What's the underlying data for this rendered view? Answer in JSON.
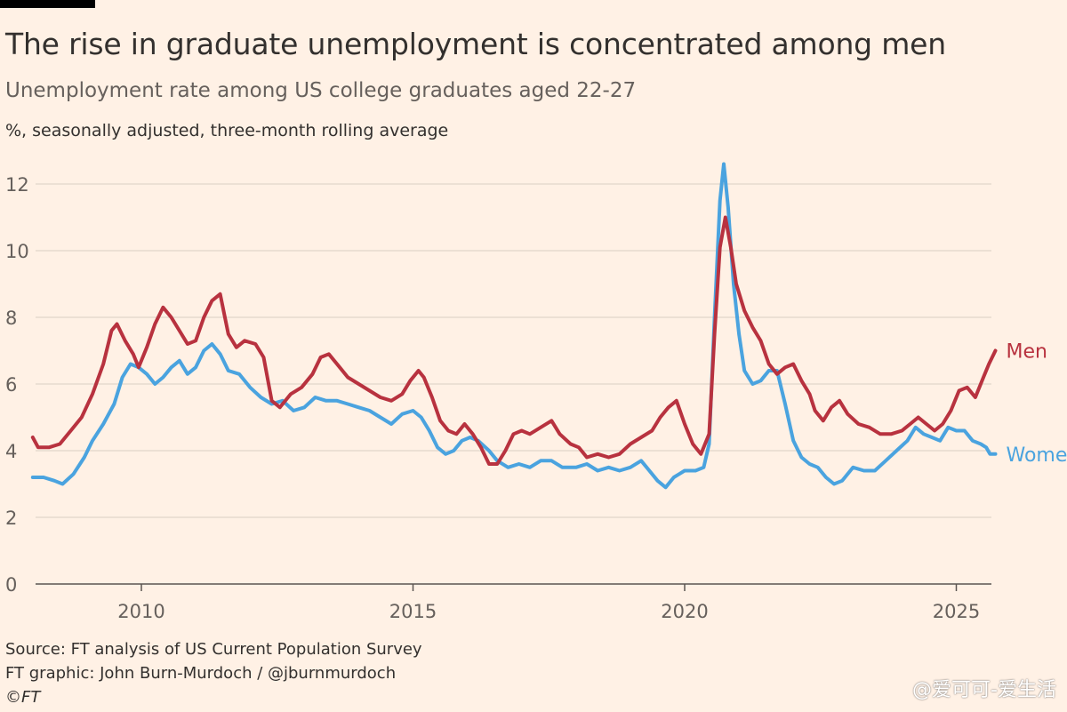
{
  "header": {
    "title": "The rise in graduate unemployment is concentrated among men",
    "subtitle": "Unemployment rate among US college graduates aged 22-27",
    "unit_note": "%, seasonally adjusted, three-month rolling average"
  },
  "footer": {
    "source": "Source: FT analysis of US Current Population Survey",
    "credit": "FT graphic: John Burn-Murdoch / @jburnmurdoch",
    "copyright": "©FT"
  },
  "watermark": "@爱可可-爱生活",
  "chart_data": {
    "type": "line",
    "title": "The rise in graduate unemployment is concentrated among men",
    "ylim": [
      0,
      12.6
    ],
    "xlim": [
      2008.0,
      2025.7
    ],
    "yticks": [
      0,
      2,
      4,
      6,
      8,
      10,
      12
    ],
    "xticks": [
      2010,
      2015,
      2020,
      2025
    ],
    "grid": true,
    "legend": "direct labels at line ends",
    "series": [
      {
        "name": "Men",
        "color": "#b8323f",
        "label_y": 7.0,
        "points": [
          [
            2008.0,
            4.4
          ],
          [
            2008.1,
            4.1
          ],
          [
            2008.3,
            4.1
          ],
          [
            2008.5,
            4.2
          ],
          [
            2008.7,
            4.6
          ],
          [
            2008.9,
            5.0
          ],
          [
            2009.1,
            5.7
          ],
          [
            2009.3,
            6.6
          ],
          [
            2009.45,
            7.6
          ],
          [
            2009.55,
            7.8
          ],
          [
            2009.7,
            7.3
          ],
          [
            2009.85,
            6.9
          ],
          [
            2009.95,
            6.5
          ],
          [
            2010.1,
            7.1
          ],
          [
            2010.25,
            7.8
          ],
          [
            2010.4,
            8.3
          ],
          [
            2010.55,
            8.0
          ],
          [
            2010.7,
            7.6
          ],
          [
            2010.85,
            7.2
          ],
          [
            2011.0,
            7.3
          ],
          [
            2011.15,
            8.0
          ],
          [
            2011.3,
            8.5
          ],
          [
            2011.45,
            8.7
          ],
          [
            2011.6,
            7.5
          ],
          [
            2011.75,
            7.1
          ],
          [
            2011.9,
            7.3
          ],
          [
            2012.1,
            7.2
          ],
          [
            2012.25,
            6.8
          ],
          [
            2012.4,
            5.5
          ],
          [
            2012.55,
            5.3
          ],
          [
            2012.75,
            5.7
          ],
          [
            2012.95,
            5.9
          ],
          [
            2013.15,
            6.3
          ],
          [
            2013.3,
            6.8
          ],
          [
            2013.45,
            6.9
          ],
          [
            2013.6,
            6.6
          ],
          [
            2013.8,
            6.2
          ],
          [
            2014.0,
            6.0
          ],
          [
            2014.2,
            5.8
          ],
          [
            2014.4,
            5.6
          ],
          [
            2014.6,
            5.5
          ],
          [
            2014.8,
            5.7
          ],
          [
            2014.95,
            6.1
          ],
          [
            2015.1,
            6.4
          ],
          [
            2015.2,
            6.2
          ],
          [
            2015.35,
            5.6
          ],
          [
            2015.5,
            4.9
          ],
          [
            2015.65,
            4.6
          ],
          [
            2015.8,
            4.5
          ],
          [
            2015.95,
            4.8
          ],
          [
            2016.1,
            4.5
          ],
          [
            2016.25,
            4.1
          ],
          [
            2016.4,
            3.6
          ],
          [
            2016.55,
            3.6
          ],
          [
            2016.7,
            4.0
          ],
          [
            2016.85,
            4.5
          ],
          [
            2017.0,
            4.6
          ],
          [
            2017.15,
            4.5
          ],
          [
            2017.35,
            4.7
          ],
          [
            2017.55,
            4.9
          ],
          [
            2017.7,
            4.5
          ],
          [
            2017.9,
            4.2
          ],
          [
            2018.05,
            4.1
          ],
          [
            2018.2,
            3.8
          ],
          [
            2018.4,
            3.9
          ],
          [
            2018.6,
            3.8
          ],
          [
            2018.8,
            3.9
          ],
          [
            2019.0,
            4.2
          ],
          [
            2019.2,
            4.4
          ],
          [
            2019.4,
            4.6
          ],
          [
            2019.55,
            5.0
          ],
          [
            2019.7,
            5.3
          ],
          [
            2019.85,
            5.5
          ],
          [
            2020.0,
            4.8
          ],
          [
            2020.15,
            4.2
          ],
          [
            2020.3,
            3.9
          ],
          [
            2020.45,
            4.5
          ],
          [
            2020.55,
            7.5
          ],
          [
            2020.65,
            10.1
          ],
          [
            2020.75,
            11.0
          ],
          [
            2020.85,
            10.1
          ],
          [
            2020.95,
            9.0
          ],
          [
            2021.1,
            8.2
          ],
          [
            2021.25,
            7.7
          ],
          [
            2021.4,
            7.3
          ],
          [
            2021.55,
            6.6
          ],
          [
            2021.7,
            6.3
          ],
          [
            2021.85,
            6.5
          ],
          [
            2022.0,
            6.6
          ],
          [
            2022.15,
            6.1
          ],
          [
            2022.3,
            5.7
          ],
          [
            2022.4,
            5.2
          ],
          [
            2022.55,
            4.9
          ],
          [
            2022.7,
            5.3
          ],
          [
            2022.85,
            5.5
          ],
          [
            2023.0,
            5.1
          ],
          [
            2023.2,
            4.8
          ],
          [
            2023.4,
            4.7
          ],
          [
            2023.6,
            4.5
          ],
          [
            2023.8,
            4.5
          ],
          [
            2024.0,
            4.6
          ],
          [
            2024.15,
            4.8
          ],
          [
            2024.3,
            5.0
          ],
          [
            2024.45,
            4.8
          ],
          [
            2024.6,
            4.6
          ],
          [
            2024.75,
            4.8
          ],
          [
            2024.9,
            5.2
          ],
          [
            2025.05,
            5.8
          ],
          [
            2025.2,
            5.9
          ],
          [
            2025.35,
            5.6
          ],
          [
            2025.5,
            6.2
          ],
          [
            2025.6,
            6.6
          ],
          [
            2025.72,
            7.0
          ]
        ]
      },
      {
        "name": "Women",
        "color": "#4aa3df",
        "label_y": 3.9,
        "points": [
          [
            2008.0,
            3.2
          ],
          [
            2008.2,
            3.2
          ],
          [
            2008.4,
            3.1
          ],
          [
            2008.55,
            3.0
          ],
          [
            2008.75,
            3.3
          ],
          [
            2008.95,
            3.8
          ],
          [
            2009.1,
            4.3
          ],
          [
            2009.3,
            4.8
          ],
          [
            2009.5,
            5.4
          ],
          [
            2009.65,
            6.2
          ],
          [
            2009.8,
            6.6
          ],
          [
            2009.95,
            6.5
          ],
          [
            2010.1,
            6.3
          ],
          [
            2010.25,
            6.0
          ],
          [
            2010.4,
            6.2
          ],
          [
            2010.55,
            6.5
          ],
          [
            2010.7,
            6.7
          ],
          [
            2010.85,
            6.3
          ],
          [
            2011.0,
            6.5
          ],
          [
            2011.15,
            7.0
          ],
          [
            2011.3,
            7.2
          ],
          [
            2011.45,
            6.9
          ],
          [
            2011.6,
            6.4
          ],
          [
            2011.8,
            6.3
          ],
          [
            2012.0,
            5.9
          ],
          [
            2012.2,
            5.6
          ],
          [
            2012.4,
            5.4
          ],
          [
            2012.6,
            5.5
          ],
          [
            2012.8,
            5.2
          ],
          [
            2013.0,
            5.3
          ],
          [
            2013.2,
            5.6
          ],
          [
            2013.4,
            5.5
          ],
          [
            2013.6,
            5.5
          ],
          [
            2013.8,
            5.4
          ],
          [
            2014.0,
            5.3
          ],
          [
            2014.2,
            5.2
          ],
          [
            2014.4,
            5.0
          ],
          [
            2014.6,
            4.8
          ],
          [
            2014.8,
            5.1
          ],
          [
            2015.0,
            5.2
          ],
          [
            2015.15,
            5.0
          ],
          [
            2015.3,
            4.6
          ],
          [
            2015.45,
            4.1
          ],
          [
            2015.6,
            3.9
          ],
          [
            2015.75,
            4.0
          ],
          [
            2015.9,
            4.3
          ],
          [
            2016.05,
            4.4
          ],
          [
            2016.2,
            4.3
          ],
          [
            2016.4,
            4.0
          ],
          [
            2016.55,
            3.7
          ],
          [
            2016.75,
            3.5
          ],
          [
            2016.95,
            3.6
          ],
          [
            2017.15,
            3.5
          ],
          [
            2017.35,
            3.7
          ],
          [
            2017.55,
            3.7
          ],
          [
            2017.75,
            3.5
          ],
          [
            2018.0,
            3.5
          ],
          [
            2018.2,
            3.6
          ],
          [
            2018.4,
            3.4
          ],
          [
            2018.6,
            3.5
          ],
          [
            2018.8,
            3.4
          ],
          [
            2019.0,
            3.5
          ],
          [
            2019.2,
            3.7
          ],
          [
            2019.35,
            3.4
          ],
          [
            2019.5,
            3.1
          ],
          [
            2019.65,
            2.9
          ],
          [
            2019.8,
            3.2
          ],
          [
            2020.0,
            3.4
          ],
          [
            2020.2,
            3.4
          ],
          [
            2020.35,
            3.5
          ],
          [
            2020.45,
            4.2
          ],
          [
            2020.55,
            8.0
          ],
          [
            2020.65,
            11.5
          ],
          [
            2020.72,
            12.6
          ],
          [
            2020.8,
            11.3
          ],
          [
            2020.9,
            9.0
          ],
          [
            2021.0,
            7.5
          ],
          [
            2021.1,
            6.4
          ],
          [
            2021.25,
            6.0
          ],
          [
            2021.4,
            6.1
          ],
          [
            2021.55,
            6.4
          ],
          [
            2021.7,
            6.4
          ],
          [
            2021.85,
            5.4
          ],
          [
            2022.0,
            4.3
          ],
          [
            2022.15,
            3.8
          ],
          [
            2022.3,
            3.6
          ],
          [
            2022.45,
            3.5
          ],
          [
            2022.6,
            3.2
          ],
          [
            2022.75,
            3.0
          ],
          [
            2022.9,
            3.1
          ],
          [
            2023.1,
            3.5
          ],
          [
            2023.3,
            3.4
          ],
          [
            2023.5,
            3.4
          ],
          [
            2023.7,
            3.7
          ],
          [
            2023.9,
            4.0
          ],
          [
            2024.1,
            4.3
          ],
          [
            2024.25,
            4.7
          ],
          [
            2024.4,
            4.5
          ],
          [
            2024.55,
            4.4
          ],
          [
            2024.7,
            4.3
          ],
          [
            2024.85,
            4.7
          ],
          [
            2025.0,
            4.6
          ],
          [
            2025.15,
            4.6
          ],
          [
            2025.3,
            4.3
          ],
          [
            2025.45,
            4.2
          ],
          [
            2025.55,
            4.1
          ],
          [
            2025.62,
            3.9
          ],
          [
            2025.72,
            3.9
          ]
        ]
      }
    ]
  }
}
